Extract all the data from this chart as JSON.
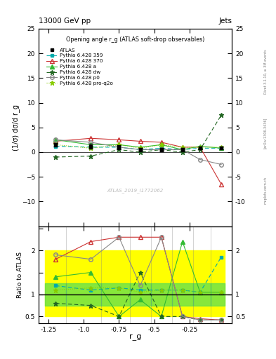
{
  "title_top": "13000 GeV pp",
  "title_right": "Jets",
  "plot_title": "Opening angle r_g (ATLAS soft-drop observables)",
  "ylabel_main": "(1/σ) dσ/d r_g",
  "ylabel_ratio": "Ratio to ATLAS",
  "xlabel": "r_g",
  "watermark": "ATLAS_2019_I1772062",
  "rivet_text": "Rivet 3.1.10, ≥ 3M events",
  "arxiv_text": "[arXiv:1306.3436]",
  "mcplots_text": "mcplots.cern.ch",
  "ylim_main": [
    -15,
    25
  ],
  "ylim_ratio": [
    0.35,
    2.55
  ],
  "xlim": [
    -1.32,
    0.05
  ],
  "x_values": [
    -1.2,
    -0.95,
    -0.75,
    -0.6,
    -0.45,
    -0.3,
    -0.175,
    -0.025
  ],
  "atlas_y": [
    1.5,
    1.2,
    1.0,
    0.5,
    0.5,
    0.5,
    0.8,
    0.8
  ],
  "atlas_yerr": [
    0.4,
    0.5,
    0.4,
    0.3,
    0.3,
    0.3,
    0.3,
    0.3
  ],
  "py359_y": [
    1.2,
    1.0,
    1.0,
    0.5,
    0.8,
    0.5,
    0.8,
    0.8
  ],
  "py370_y": [
    2.2,
    2.8,
    2.5,
    2.2,
    2.0,
    1.0,
    1.0,
    -6.5
  ],
  "pya_y": [
    2.5,
    1.5,
    1.5,
    1.0,
    1.5,
    0.5,
    1.2,
    0.8
  ],
  "pydw_y": [
    -1.0,
    -0.8,
    0.5,
    0.0,
    0.5,
    0.0,
    0.5,
    7.5
  ],
  "pyp0_y": [
    2.5,
    2.0,
    1.0,
    0.5,
    0.5,
    0.5,
    -1.5,
    -2.5
  ],
  "pyproq2o_y": [
    1.5,
    0.8,
    1.5,
    0.8,
    1.5,
    1.0,
    1.0,
    1.0
  ],
  "ratio_x": [
    -1.2,
    -0.95,
    -0.75,
    -0.6,
    -0.45,
    -0.3,
    -0.175,
    -0.025
  ],
  "ratio_py359": [
    1.2,
    1.1,
    1.15,
    1.1,
    1.1,
    1.1,
    1.05,
    1.85
  ],
  "ratio_py370": [
    1.8,
    2.2,
    2.3,
    2.3,
    2.3,
    0.5,
    0.45,
    0.42
  ],
  "ratio_pya": [
    1.4,
    1.5,
    0.5,
    0.88,
    0.5,
    2.2,
    1.05,
    1.05
  ],
  "ratio_pydw": [
    0.8,
    0.75,
    0.5,
    1.5,
    0.5,
    0.5,
    0.42,
    0.42
  ],
  "ratio_pyp0": [
    1.9,
    1.8,
    2.3,
    1.2,
    2.3,
    0.5,
    0.42,
    0.42
  ],
  "ratio_pyproq2o": [
    1.1,
    1.15,
    1.15,
    1.05,
    1.1,
    1.1,
    1.05,
    1.05
  ],
  "band_x_edges": [
    -1.275,
    -1.125,
    -0.875,
    -0.675,
    -0.525,
    -0.375,
    -0.225,
    -0.1,
    0.0
  ],
  "band_yellow_low": [
    0.5,
    0.5,
    0.5,
    0.5,
    0.5,
    0.5,
    0.5,
    0.5
  ],
  "band_yellow_high": [
    2.0,
    2.0,
    2.0,
    2.0,
    2.0,
    2.0,
    2.0,
    2.0
  ],
  "band_green_low": [
    0.75,
    0.75,
    0.75,
    0.75,
    0.75,
    0.75,
    0.75,
    0.75
  ],
  "band_green_high": [
    1.25,
    1.25,
    1.25,
    1.25,
    1.25,
    1.25,
    1.25,
    1.25
  ],
  "color_atlas": "black",
  "color_py359": "#00aaaa",
  "color_py370": "#cc3333",
  "color_pya": "#33bb33",
  "color_pydw": "#226622",
  "color_pyp0": "#888888",
  "color_pyproq2o": "#88cc00",
  "background": "white",
  "yticks_main": [
    -10,
    -5,
    0,
    5,
    10,
    15,
    20,
    25
  ],
  "yticks_ratio": [
    0.5,
    1.0,
    1.5,
    2.0,
    2.5
  ],
  "xticks": [
    -1.25,
    -1.0,
    -0.75,
    -0.5,
    -0.25
  ]
}
